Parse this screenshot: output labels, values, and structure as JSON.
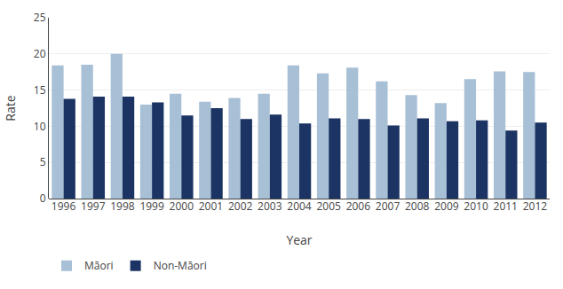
{
  "chart_data": {
    "type": "bar",
    "xlabel": "Year",
    "ylabel": "Rate",
    "categories": [
      "1996",
      "1997",
      "1998",
      "1999",
      "2000",
      "2001",
      "2002",
      "2003",
      "2004",
      "2005",
      "2006",
      "2007",
      "2008",
      "2009",
      "2010",
      "2011",
      "2012"
    ],
    "series": [
      {
        "name": "Māori",
        "color": "#a8c0d6",
        "values": [
          18.4,
          18.5,
          20.0,
          13.0,
          14.5,
          13.4,
          13.9,
          14.5,
          18.4,
          17.3,
          18.1,
          16.2,
          14.3,
          13.2,
          16.5,
          17.6,
          17.5
        ]
      },
      {
        "name": "Non-Māori",
        "color": "#1c3464",
        "values": [
          13.8,
          14.1,
          14.1,
          13.3,
          11.5,
          12.5,
          11.0,
          11.6,
          10.4,
          11.1,
          11.0,
          10.1,
          11.1,
          10.7,
          10.8,
          9.4,
          10.5
        ]
      }
    ],
    "ylim": [
      0,
      25
    ],
    "yticks": [
      0,
      5,
      10,
      15,
      20,
      25
    ],
    "grid": true,
    "legend": "bottom"
  }
}
